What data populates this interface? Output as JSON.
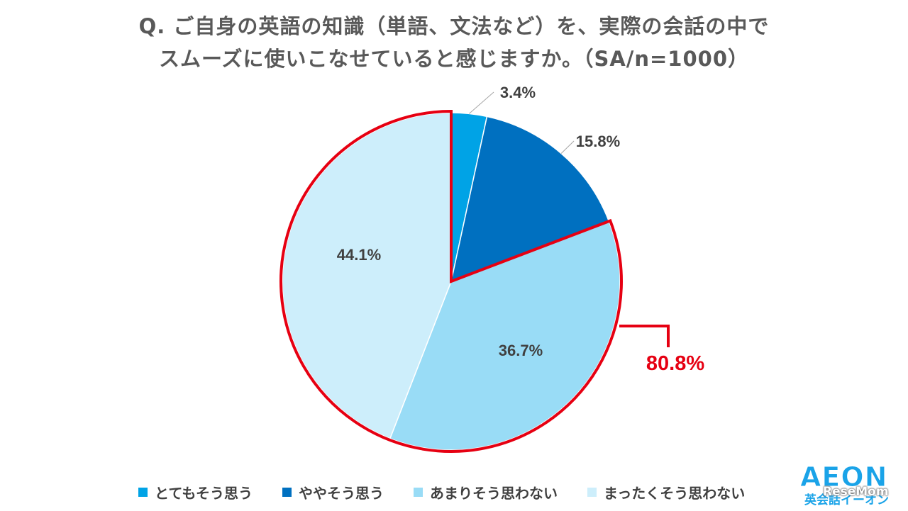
{
  "chart_data": {
    "type": "pie",
    "title_line1": "Q. ご自身の英語の知識（単語、文法など）を、実際の会話の中で",
    "title_line2": "スムーズに使いこなせていると感じますか。（SA/n=1000）",
    "slices": [
      {
        "label": "とてもそう思う",
        "value": 3.4,
        "value_label": "3.4%",
        "color": "#00a3e6"
      },
      {
        "label": "ややそう思う",
        "value": 15.8,
        "value_label": "15.8%",
        "color": "#0070c0"
      },
      {
        "label": "あまりそう思わない",
        "value": 36.7,
        "value_label": "36.7%",
        "color": "#99dcf6"
      },
      {
        "label": "まったくそう思わない",
        "value": 44.1,
        "value_label": "44.1%",
        "color": "#cdeefb"
      }
    ],
    "start_angle": "12 o'clock",
    "direction": "clockwise",
    "legend_position": "bottom",
    "highlight": {
      "slices": [
        "あまりそう思わない",
        "まったくそう思わない"
      ],
      "value_label": "80.8%",
      "color": "#e60012"
    }
  },
  "brand": {
    "logo_text": "AEON",
    "logo_subtext": "英会話イーオン",
    "watermark": "ReseMom"
  }
}
